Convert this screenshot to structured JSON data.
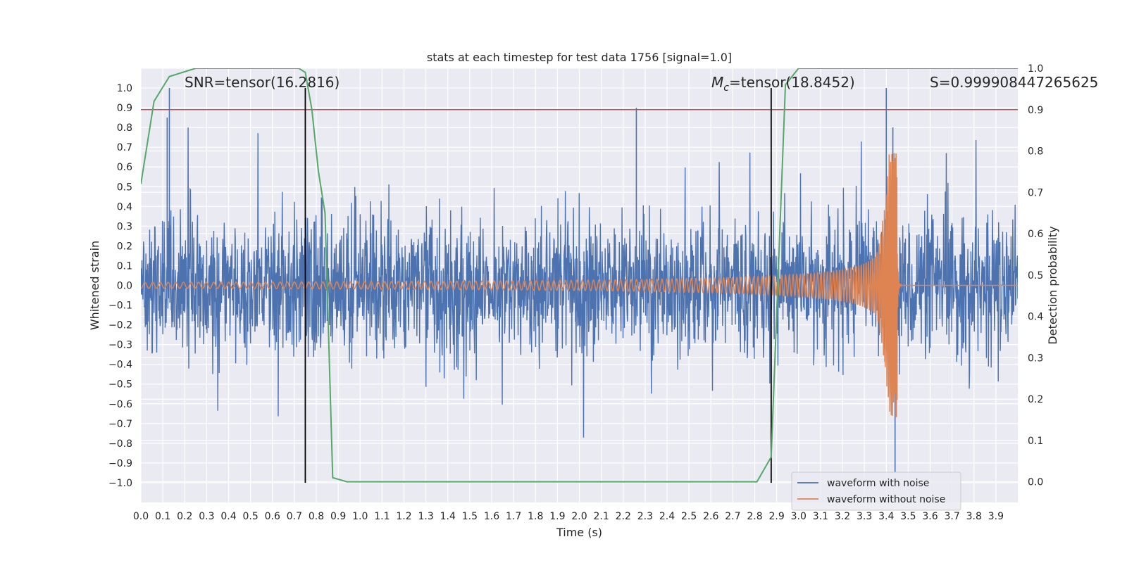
{
  "chart_data": {
    "type": "line",
    "title": "stats at each timestep for test data 1756 [signal=1.0]",
    "xlabel": "Time (s)",
    "ylabel": "Whitened strain",
    "ylabel_right": "Detection probability",
    "xlim": [
      0.0,
      4.0
    ],
    "ylim": [
      -1.1,
      1.1
    ],
    "ylim_right": [
      -0.05,
      1.0
    ],
    "grid": true,
    "x_ticks": [
      "0.0",
      "0.1",
      "0.2",
      "0.3",
      "0.4",
      "0.5",
      "0.6",
      "0.7",
      "0.8",
      "0.9",
      "1.0",
      "1.1",
      "1.2",
      "1.3",
      "1.4",
      "1.5",
      "1.6",
      "1.7",
      "1.8",
      "1.9",
      "2.0",
      "2.1",
      "2.2",
      "2.3",
      "2.4",
      "2.5",
      "2.6",
      "2.7",
      "2.8",
      "2.9",
      "3.0",
      "3.1",
      "3.2",
      "3.3",
      "3.4",
      "3.5",
      "3.6",
      "3.7",
      "3.8",
      "3.9"
    ],
    "y_ticks": [
      "1.0",
      "0.9",
      "0.8",
      "0.7",
      "0.6",
      "0.5",
      "0.4",
      "0.3",
      "0.2",
      "0.1",
      "0.0",
      "−0.1",
      "−0.2",
      "−0.3",
      "−0.4",
      "−0.5",
      "−0.6",
      "−0.7",
      "−0.8",
      "−0.9",
      "−1.0"
    ],
    "y_tick_values": [
      1.0,
      0.9,
      0.8,
      0.7,
      0.6,
      0.5,
      0.4,
      0.3,
      0.2,
      0.1,
      0.0,
      -0.1,
      -0.2,
      -0.3,
      -0.4,
      -0.5,
      -0.6,
      -0.7,
      -0.8,
      -0.9,
      -1.0
    ],
    "y_right_ticks": [
      "1.0",
      "0.9",
      "0.8",
      "0.7",
      "0.6",
      "0.5",
      "0.4",
      "0.3",
      "0.2",
      "0.1",
      "0.0"
    ],
    "y_right_tick_values": [
      1.0,
      0.9,
      0.8,
      0.7,
      0.6,
      0.5,
      0.4,
      0.3,
      0.2,
      0.1,
      0.0
    ],
    "annotations": {
      "snr": "SNR=tensor(16.2816)",
      "mc_symbol": "M",
      "mc_sub": "c",
      "mc_value": "=tensor(18.8452)",
      "s": "S=0.999908447265625"
    },
    "threshold": {
      "value": 0.9,
      "axis": "right",
      "color": "#c44e52"
    },
    "vertical_markers": [
      0.75,
      2.875
    ],
    "series": [
      {
        "name": "waveform with noise",
        "color": "#4c72b0",
        "kind": "noise",
        "envelope": 0.4,
        "peak_values": [
          [
            0.13,
            1.0
          ],
          [
            0.12,
            0.85
          ],
          [
            2.26,
            0.9
          ],
          [
            3.4,
            1.0
          ],
          [
            3.44,
            -0.95
          ],
          [
            3.43,
            0.8
          ]
        ]
      },
      {
        "name": "waveform without noise",
        "color": "#dd8452",
        "kind": "chirp",
        "t_merge": 3.45,
        "amplitude_start": 0.015,
        "amplitude_peak": 0.67
      },
      {
        "name": "detection probability",
        "color": "#55a868",
        "axis": "right",
        "legend": false,
        "x": [
          0.0,
          0.06,
          0.13,
          0.19,
          0.25,
          0.31,
          0.38,
          0.5,
          0.63,
          0.72,
          0.75,
          0.78,
          0.81,
          0.84,
          0.875,
          0.94,
          1.0,
          1.5,
          2.0,
          2.5,
          2.75,
          2.81,
          2.875,
          2.94,
          3.0,
          3.5,
          4.0
        ],
        "y": [
          0.72,
          0.92,
          0.98,
          0.99,
          1.0,
          1.0,
          1.0,
          1.0,
          1.0,
          1.0,
          0.99,
          0.9,
          0.75,
          0.65,
          0.01,
          0.0,
          0.0,
          0.0,
          0.0,
          0.0,
          0.0,
          0.0,
          0.06,
          0.96,
          1.0,
          1.0,
          1.0
        ]
      }
    ],
    "legend": {
      "position": "lower-right",
      "entries": [
        "waveform with noise",
        "waveform without noise"
      ]
    }
  },
  "colors": {
    "plot_bg": "#eaeaf2",
    "grid": "#ffffff",
    "noise": "#4c72b0",
    "template": "#dd8452",
    "probability": "#55a868",
    "threshold": "#c44e52",
    "marker": "#000000"
  }
}
